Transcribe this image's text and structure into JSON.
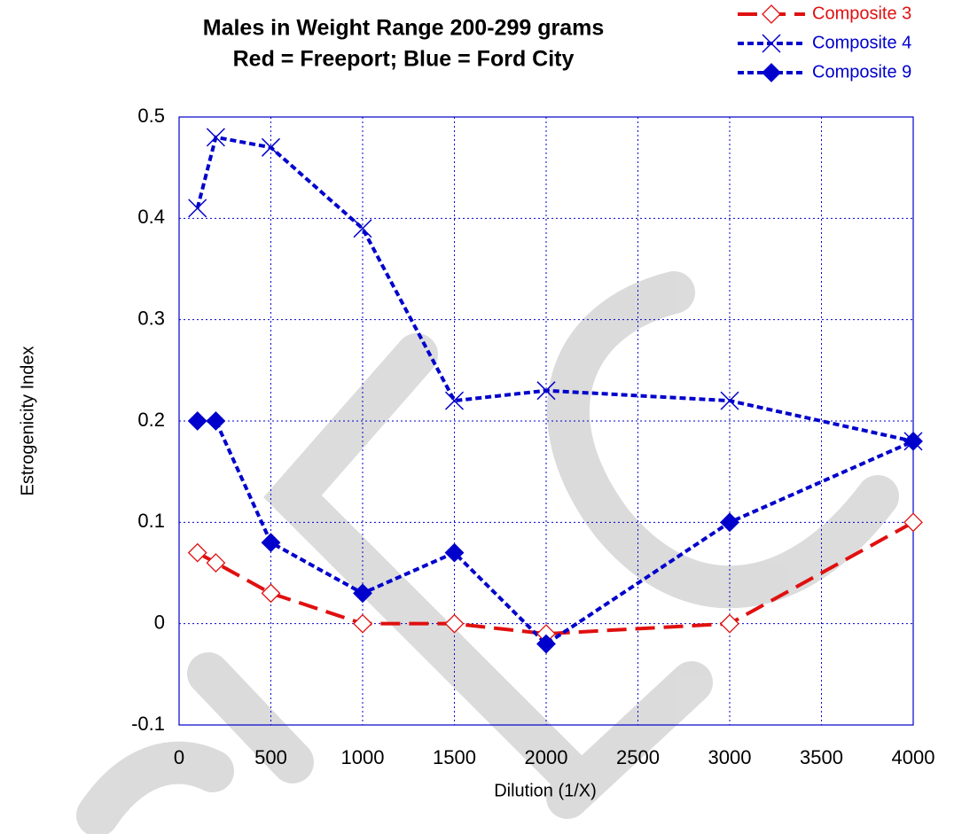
{
  "chart_data": {
    "type": "line",
    "title": [
      "Males in Weight Range 200-299 grams",
      "Red = Freeport; Blue = Ford City"
    ],
    "x_label": "Dilution (1/X)",
    "y_label": "Estrogenicity Index",
    "x": [
      100,
      200,
      500,
      1000,
      1500,
      2000,
      3000,
      4000
    ],
    "series": [
      {
        "name": "Composite 3",
        "color": "#e01010",
        "marker": "open-diamond",
        "dash": "long",
        "values": [
          0.07,
          0.06,
          0.03,
          0,
          0,
          -0.01,
          0,
          0.1
        ]
      },
      {
        "name": "Composite 4",
        "color": "#0000cc",
        "marker": "cross",
        "dash": "short",
        "values": [
          0.41,
          0.48,
          0.47,
          0.39,
          0.22,
          0.23,
          0.22,
          0.18
        ]
      },
      {
        "name": "Composite 9",
        "color": "#0000cc",
        "marker": "filled-diamond",
        "dash": "short",
        "values": [
          0.2,
          0.2,
          0.08,
          0.03,
          0.07,
          -0.02,
          0.1,
          0.18
        ]
      }
    ],
    "xlim": [
      0,
      4000
    ],
    "xticks": [
      0,
      500,
      1000,
      1500,
      2000,
      2500,
      3000,
      3500,
      4000
    ],
    "ylim": [
      -0.1,
      0.5
    ],
    "yticks": [
      -0.1,
      0,
      0.1,
      0.2,
      0.3,
      0.4,
      0.5
    ],
    "grid": true,
    "legend": "top-right"
  }
}
